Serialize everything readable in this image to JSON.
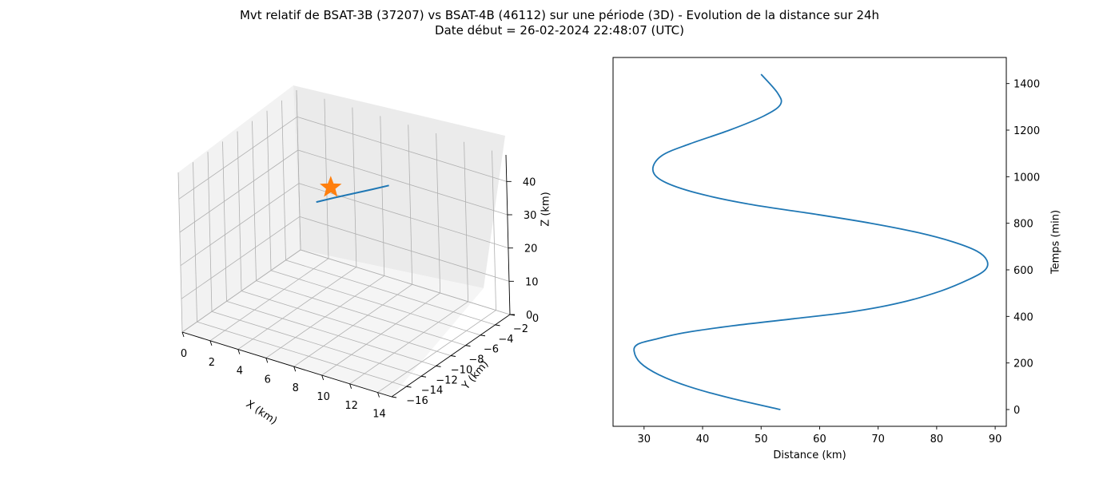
{
  "figure": {
    "title_line1": "Mvt relatif de BSAT-3B (37207) vs BSAT-4B (46112) sur une période (3D) - Evolution de la distance sur 24h",
    "title_line2": "Date début = 26-02-2024 22:48:07 (UTC)"
  },
  "chart_data": [
    {
      "type": "line3d",
      "xlabel": "X (km)",
      "ylabel": "Y (km)",
      "zlabel": "Z (km)",
      "x_ticks": [
        0,
        2,
        4,
        6,
        8,
        10,
        12,
        14
      ],
      "y_ticks": [
        0,
        -2,
        -4,
        -6,
        -8,
        -10,
        -12,
        -14,
        -16
      ],
      "z_ticks": [
        0,
        10,
        20,
        30,
        40
      ],
      "xlim": [
        0,
        15
      ],
      "ylim": [
        -16,
        0
      ],
      "zlim": [
        0,
        48
      ],
      "grid": true,
      "series": [
        {
          "x": [
            2.2,
            3.2,
            4.3,
            5.4,
            6.5
          ],
          "y": [
            -1.8,
            -1.2,
            -0.7,
            -0.3,
            0.0
          ],
          "z": [
            20.0,
            21.7,
            23.6,
            25.6,
            27.8
          ],
          "color": "#1f77b4"
        }
      ],
      "markers": [
        {
          "shape": "star",
          "x": 2.4,
          "y": -0.2,
          "z": 22.2,
          "color": "#ff7f0e"
        }
      ]
    },
    {
      "type": "line",
      "xlabel": "Distance (km)",
      "ylabel": "Temps (min)",
      "ylabel_position": "right",
      "x_ticks": [
        30,
        40,
        50,
        60,
        70,
        80,
        90
      ],
      "y_ticks": [
        0,
        200,
        400,
        600,
        800,
        1000,
        1200,
        1400
      ],
      "xlim": [
        24.7,
        91.9
      ],
      "ylim": [
        -72,
        1512
      ],
      "grid": false,
      "series": [
        {
          "color": "#1f77b4",
          "x": [
            53.3,
            44.6,
            37.5,
            32.5,
            29.4,
            28.3,
            28.9,
            31.6,
            36.9,
            45.2,
            55.5,
            65.5,
            74.0,
            80.8,
            85.6,
            88.3,
            88.6,
            86.9,
            82.8,
            76.8,
            68.8,
            59.0,
            48.4,
            39.0,
            33.3,
            31.5,
            33.0,
            37.7,
            44.6,
            50.4,
            53.3,
            52.8,
            50.0
          ],
          "y": [
            0,
            50,
            100,
            150,
            200,
            250,
            280,
            300,
            330,
            360,
            390,
            420,
            460,
            510,
            560,
            600,
            640,
            680,
            720,
            760,
            800,
            840,
            880,
            930,
            980,
            1030,
            1090,
            1140,
            1200,
            1260,
            1310,
            1360,
            1440
          ]
        }
      ]
    }
  ]
}
